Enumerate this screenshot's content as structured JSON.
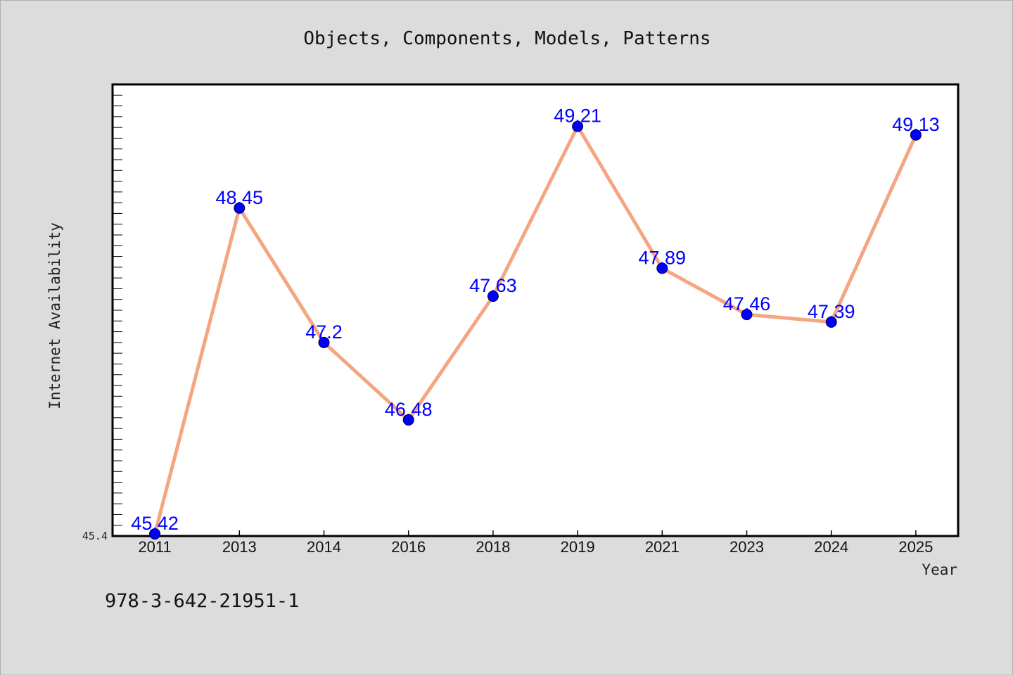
{
  "chart_data": {
    "type": "line",
    "title": "Objects, Components, Models, Patterns",
    "xlabel": "Year",
    "ylabel": "Internet Availability",
    "categories": [
      "2011",
      "2013",
      "2014",
      "2016",
      "2018",
      "2019",
      "2021",
      "2023",
      "2024",
      "2025"
    ],
    "series": [
      {
        "values": [
          45.42,
          48.45,
          47.2,
          46.48,
          47.63,
          49.21,
          47.89,
          47.46,
          47.39,
          49.13
        ],
        "labels": [
          "45.42",
          "48.45",
          "47.2",
          "46.48",
          "47.63",
          "49.21",
          "47.89",
          "47.46",
          "47.39",
          "49.13"
        ]
      }
    ],
    "ylim": [
      45.4,
      49.6
    ],
    "yticks": [
      "45.4"
    ],
    "grid": false,
    "legend": "none",
    "line_color": "#f4a582",
    "marker_color": "#0000ff"
  },
  "footer": {
    "isbn": "978-3-642-21951-1"
  }
}
